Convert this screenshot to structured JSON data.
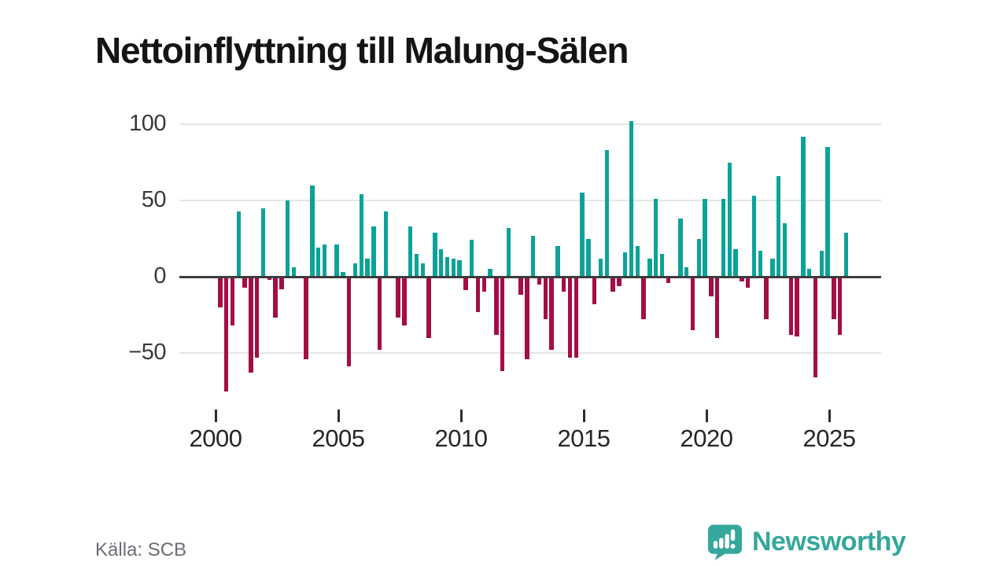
{
  "title": "Nettoinflyttning till Malung-Sälen",
  "source": "Källa: SCB",
  "logo": {
    "text": "Newsworthy"
  },
  "colors": {
    "positive_bar": "#0ca29a",
    "negative_bar": "#a40d46",
    "logo_teal": "#35a79b",
    "gridline": "#e6e6e6",
    "zero_line": "#3d3d3d",
    "title_text": "#141414",
    "axis_text": "#3a3a3a",
    "source_text": "#6d6d77"
  },
  "chart_data": {
    "type": "bar",
    "title": "Nettoinflyttning till Malung-Sälen",
    "xlabel": "",
    "ylabel": "",
    "grid": true,
    "legend": false,
    "x_ticks": [
      2000,
      2005,
      2010,
      2015,
      2020,
      2025
    ],
    "x_tick_labels": [
      "2000",
      "2005",
      "2010",
      "2015",
      "2020",
      "2025"
    ],
    "y_ticks": [
      100,
      50,
      0,
      -50
    ],
    "y_tick_labels": [
      "100",
      "50",
      "0",
      "−50"
    ],
    "ylim": [
      -80,
      105
    ],
    "positive_color": "#0ca29a",
    "negative_color": "#a40d46",
    "points": [
      [
        "2000Q1",
        -20
      ],
      [
        "2000Q2",
        -75
      ],
      [
        "2000Q3",
        -32
      ],
      [
        "2000Q4",
        43
      ],
      [
        "2001Q1",
        -7
      ],
      [
        "2001Q2",
        -63
      ],
      [
        "2001Q3",
        -53
      ],
      [
        "2001Q4",
        45
      ],
      [
        "2002Q1",
        -2
      ],
      [
        "2002Q2",
        -27
      ],
      [
        "2002Q3",
        -8
      ],
      [
        "2002Q4",
        50
      ],
      [
        "2003Q1",
        6
      ],
      [
        "2003Q2",
        0
      ],
      [
        "2003Q3",
        -54
      ],
      [
        "2003Q4",
        60
      ],
      [
        "2004Q1",
        19
      ],
      [
        "2004Q2",
        21
      ],
      [
        "2004Q3",
        0
      ],
      [
        "2004Q4",
        21
      ],
      [
        "2005Q1",
        3
      ],
      [
        "2005Q2",
        -59
      ],
      [
        "2005Q3",
        9
      ],
      [
        "2005Q4",
        54
      ],
      [
        "2006Q1",
        12
      ],
      [
        "2006Q2",
        33
      ],
      [
        "2006Q3",
        -48
      ],
      [
        "2006Q4",
        43
      ],
      [
        "2007Q1",
        0
      ],
      [
        "2007Q2",
        -27
      ],
      [
        "2007Q3",
        -32
      ],
      [
        "2007Q4",
        33
      ],
      [
        "2008Q1",
        15
      ],
      [
        "2008Q2",
        9
      ],
      [
        "2008Q3",
        -40
      ],
      [
        "2008Q4",
        29
      ],
      [
        "2009Q1",
        18
      ],
      [
        "2009Q2",
        13
      ],
      [
        "2009Q3",
        12
      ],
      [
        "2009Q4",
        11
      ],
      [
        "2010Q1",
        -9
      ],
      [
        "2010Q2",
        24
      ],
      [
        "2010Q3",
        -23
      ],
      [
        "2010Q4",
        -10
      ],
      [
        "2011Q1",
        5
      ],
      [
        "2011Q2",
        -38
      ],
      [
        "2011Q3",
        -62
      ],
      [
        "2011Q4",
        32
      ],
      [
        "2012Q1",
        0
      ],
      [
        "2012Q2",
        -12
      ],
      [
        "2012Q3",
        -54
      ],
      [
        "2012Q4",
        27
      ],
      [
        "2013Q1",
        -5
      ],
      [
        "2013Q2",
        -28
      ],
      [
        "2013Q3",
        -48
      ],
      [
        "2013Q4",
        20
      ],
      [
        "2014Q1",
        -10
      ],
      [
        "2014Q2",
        -53
      ],
      [
        "2014Q3",
        -53
      ],
      [
        "2014Q4",
        55
      ],
      [
        "2015Q1",
        25
      ],
      [
        "2015Q2",
        -18
      ],
      [
        "2015Q3",
        12
      ],
      [
        "2015Q4",
        83
      ],
      [
        "2016Q1",
        -10
      ],
      [
        "2016Q2",
        -6
      ],
      [
        "2016Q3",
        16
      ],
      [
        "2016Q4",
        102
      ],
      [
        "2017Q1",
        20
      ],
      [
        "2017Q2",
        -28
      ],
      [
        "2017Q3",
        12
      ],
      [
        "2017Q4",
        51
      ],
      [
        "2018Q1",
        15
      ],
      [
        "2018Q2",
        -4
      ],
      [
        "2018Q3",
        0
      ],
      [
        "2018Q4",
        38
      ],
      [
        "2019Q1",
        6
      ],
      [
        "2019Q2",
        -35
      ],
      [
        "2019Q3",
        25
      ],
      [
        "2019Q4",
        51
      ],
      [
        "2020Q1",
        -13
      ],
      [
        "2020Q2",
        -40
      ],
      [
        "2020Q3",
        51
      ],
      [
        "2020Q4",
        75
      ],
      [
        "2021Q1",
        18
      ],
      [
        "2021Q2",
        -3
      ],
      [
        "2021Q3",
        -7
      ],
      [
        "2021Q4",
        53
      ],
      [
        "2022Q1",
        17
      ],
      [
        "2022Q2",
        -28
      ],
      [
        "2022Q3",
        12
      ],
      [
        "2022Q4",
        66
      ],
      [
        "2023Q1",
        35
      ],
      [
        "2023Q2",
        -38
      ],
      [
        "2023Q3",
        -39
      ],
      [
        "2023Q4",
        92
      ],
      [
        "2024Q1",
        5
      ],
      [
        "2024Q2",
        -66
      ],
      [
        "2024Q3",
        17
      ],
      [
        "2024Q4",
        85
      ],
      [
        "2025Q1",
        -28
      ],
      [
        "2025Q2",
        -38
      ],
      [
        "2025Q3",
        29
      ]
    ]
  }
}
